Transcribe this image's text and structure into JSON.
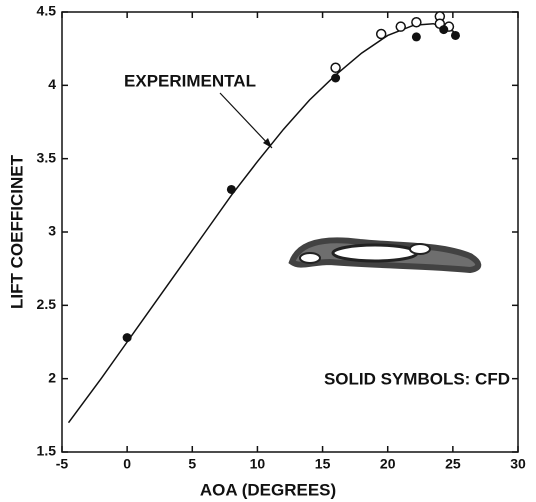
{
  "chart_data": {
    "type": "line",
    "x_label": "AOA (DEGREES)",
    "y_label": "LIFT COEFFICINET",
    "xlim": [
      -5,
      30
    ],
    "ylim": [
      1.5,
      4.5
    ],
    "xticks": [
      -5,
      0,
      5,
      10,
      15,
      20,
      25,
      30
    ],
    "yticks": [
      1.5,
      2,
      2.5,
      3,
      3.5,
      4,
      4.5
    ],
    "series": [
      {
        "name": "EXPERIMENTAL",
        "style": "line",
        "color": "#111111",
        "x": [
          -4.5,
          -2,
          0,
          2,
          4,
          6,
          8,
          10,
          12,
          14,
          16,
          18,
          20,
          22,
          23.5,
          25,
          25.5
        ],
        "values": [
          1.7,
          2.0,
          2.25,
          2.5,
          2.75,
          3.0,
          3.25,
          3.48,
          3.7,
          3.9,
          4.07,
          4.22,
          4.34,
          4.41,
          4.42,
          4.37,
          4.33
        ]
      },
      {
        "style": "open",
        "color": "#111111",
        "x": [
          16,
          19.5,
          21,
          22.2,
          24,
          24,
          24.7
        ],
        "values": [
          4.12,
          4.35,
          4.4,
          4.43,
          4.47,
          4.42,
          4.4
        ]
      },
      {
        "name": "SOLID SYMBOLS: CFD",
        "style": "filled",
        "color": "#111111",
        "x": [
          0,
          8,
          16,
          22.2,
          24.3,
          25.2
        ],
        "values": [
          2.28,
          3.29,
          4.05,
          4.33,
          4.38,
          4.34
        ]
      }
    ]
  }
}
